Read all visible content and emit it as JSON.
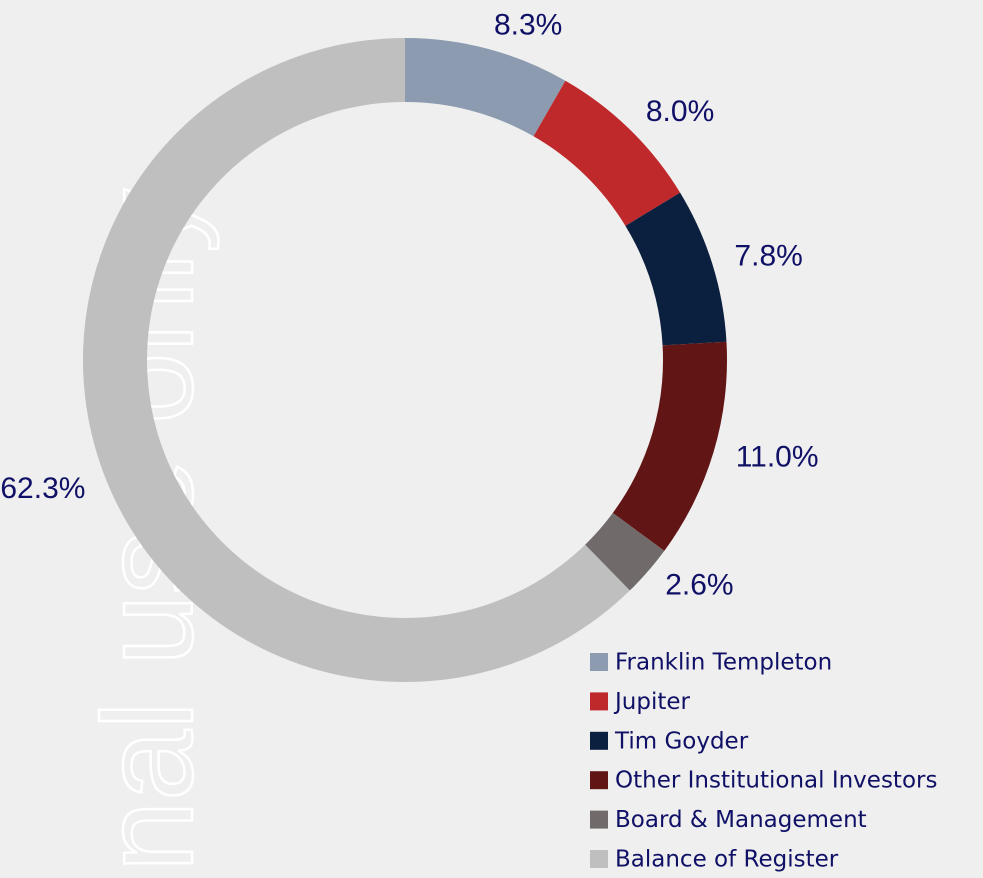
{
  "watermark": "nal use only",
  "chart_data": {
    "type": "donut",
    "categories": [
      "Franklin Templeton",
      "Jupiter",
      "Tim Goyder",
      "Other Institutional Investors",
      "Board & Management",
      "Balance of Register"
    ],
    "values": [
      8.3,
      8.0,
      7.8,
      11.0,
      2.6,
      62.3
    ],
    "value_labels": [
      "8.3%",
      "8.0%",
      "7.8%",
      "11.0%",
      "2.6%",
      "62.3%"
    ],
    "colors": [
      "#8c9bb0",
      "#c0292b",
      "#0b1f3f",
      "#621515",
      "#706b6a",
      "#bfbfbf"
    ],
    "legend": "bottom-right"
  }
}
